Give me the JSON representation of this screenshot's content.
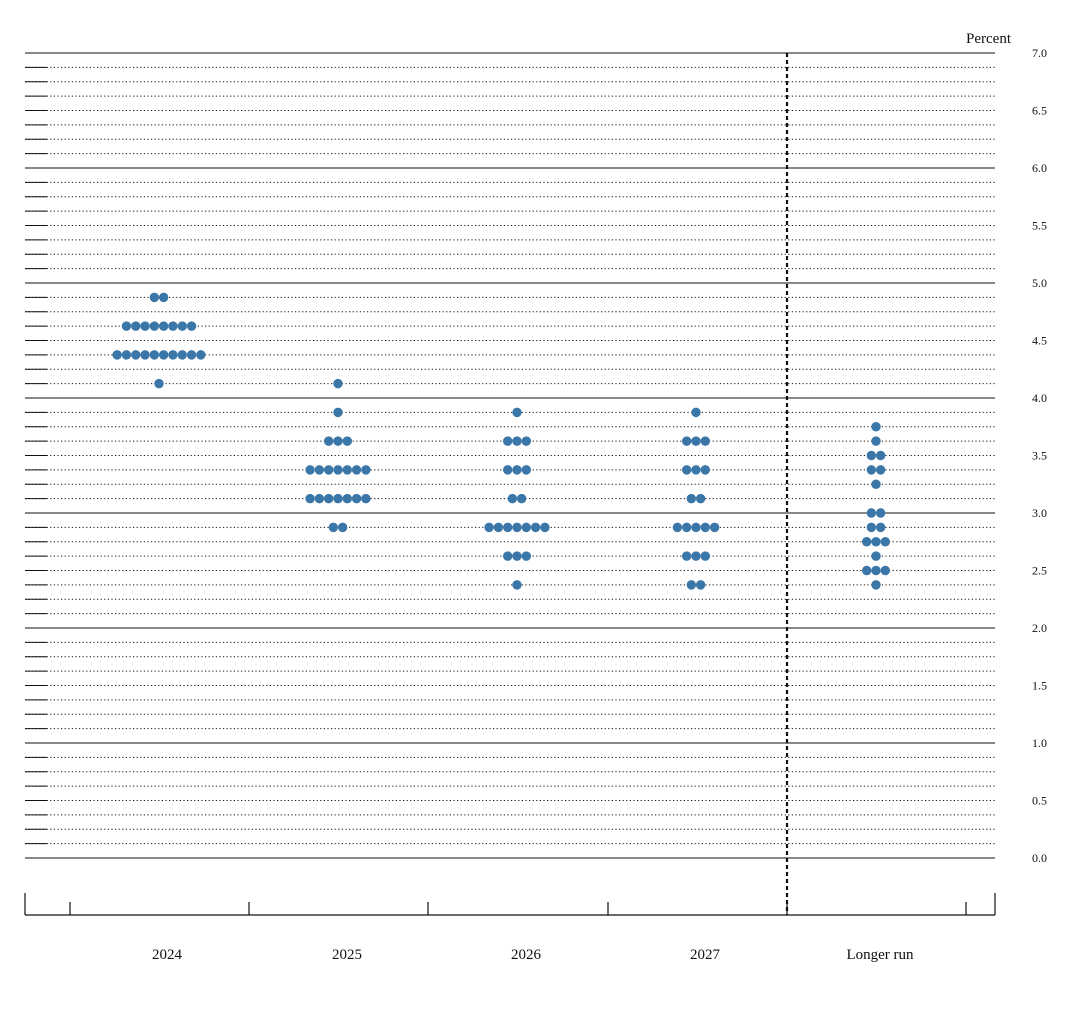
{
  "chart_data": {
    "type": "scatter",
    "title": "",
    "xlabel": "",
    "ylabel": "Percent",
    "ylim": [
      0,
      7
    ],
    "y_ticks": [
      "0.0",
      "0.5",
      "1.0",
      "1.5",
      "2.0",
      "2.5",
      "3.0",
      "3.5",
      "4.0",
      "4.5",
      "5.0",
      "5.5",
      "6.0",
      "6.5",
      "7.0"
    ],
    "categories": [
      "2024",
      "2025",
      "2026",
      "2027",
      "Longer run"
    ],
    "grid": "solid lines at whole percents, dotted lines at 0.125 steps",
    "dot_color": "#3a76a8",
    "line_color": "#111111",
    "separator": "dashed vertical line between 2027 and Longer run",
    "series": [
      {
        "category": "2024",
        "points": [
          {
            "y": 4.875,
            "count": 2
          },
          {
            "y": 4.625,
            "count": 8
          },
          {
            "y": 4.375,
            "count": 10
          },
          {
            "y": 4.125,
            "count": 1
          }
        ]
      },
      {
        "category": "2025",
        "points": [
          {
            "y": 4.125,
            "count": 1
          },
          {
            "y": 3.875,
            "count": 1
          },
          {
            "y": 3.625,
            "count": 3
          },
          {
            "y": 3.375,
            "count": 7
          },
          {
            "y": 3.125,
            "count": 7
          },
          {
            "y": 2.875,
            "count": 2
          }
        ]
      },
      {
        "category": "2026",
        "points": [
          {
            "y": 3.875,
            "count": 1
          },
          {
            "y": 3.625,
            "count": 3
          },
          {
            "y": 3.375,
            "count": 3
          },
          {
            "y": 3.125,
            "count": 2
          },
          {
            "y": 2.875,
            "count": 7
          },
          {
            "y": 2.625,
            "count": 3
          },
          {
            "y": 2.375,
            "count": 1
          }
        ]
      },
      {
        "category": "2027",
        "points": [
          {
            "y": 3.875,
            "count": 1
          },
          {
            "y": 3.625,
            "count": 3
          },
          {
            "y": 3.375,
            "count": 3
          },
          {
            "y": 3.125,
            "count": 2
          },
          {
            "y": 2.875,
            "count": 5
          },
          {
            "y": 2.625,
            "count": 3
          },
          {
            "y": 2.375,
            "count": 2
          }
        ]
      },
      {
        "category": "Longer run",
        "points": [
          {
            "y": 3.75,
            "count": 1
          },
          {
            "y": 3.625,
            "count": 1
          },
          {
            "y": 3.5,
            "count": 2
          },
          {
            "y": 3.375,
            "count": 2
          },
          {
            "y": 3.25,
            "count": 1
          },
          {
            "y": 3.0,
            "count": 2
          },
          {
            "y": 2.875,
            "count": 2
          },
          {
            "y": 2.75,
            "count": 3
          },
          {
            "y": 2.625,
            "count": 1
          },
          {
            "y": 2.5,
            "count": 3
          },
          {
            "y": 2.375,
            "count": 1
          }
        ]
      }
    ]
  }
}
